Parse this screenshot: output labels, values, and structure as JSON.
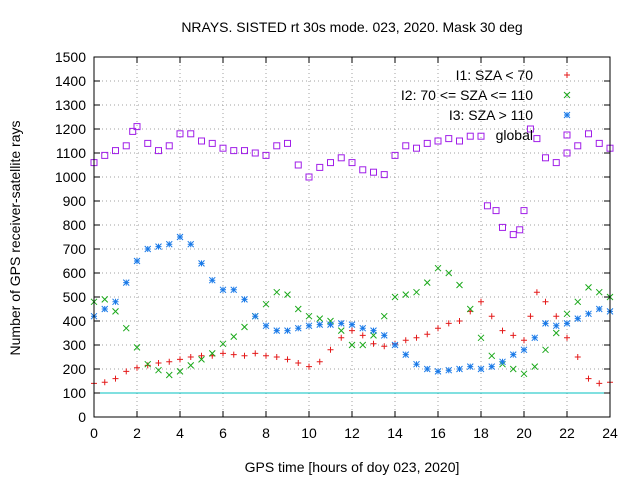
{
  "chart_data": {
    "type": "scatter",
    "title": "NRAYS. SISTED rt 30s mode. 023, 2020. Mask 30 deg",
    "xlabel": "GPS time [hours of doy 023, 2020]",
    "ylabel": "Number of GPS receiver-satellite rays",
    "xlim": [
      0,
      24
    ],
    "ylim": [
      0,
      1500
    ],
    "xticks": [
      0,
      2,
      4,
      6,
      8,
      10,
      12,
      14,
      16,
      18,
      20,
      22,
      24
    ],
    "yticks": [
      0,
      100,
      200,
      300,
      400,
      500,
      600,
      700,
      800,
      900,
      1000,
      1100,
      1200,
      1300,
      1400,
      1500
    ],
    "grid": true,
    "legend_position": "top-right",
    "reference_line": {
      "y": 100,
      "color": "#00c0c0"
    },
    "series": [
      {
        "name": "I1: SZA < 70",
        "marker": "+",
        "color": "#e41a1a",
        "x": [
          0,
          0.5,
          1,
          1.5,
          2,
          2.5,
          3,
          3.5,
          4,
          4.5,
          5,
          5.5,
          6,
          6.5,
          7,
          7.5,
          8,
          8.5,
          9,
          9.5,
          10,
          10.5,
          11,
          11.5,
          12,
          12.5,
          13,
          13.5,
          14,
          14.5,
          15,
          15.5,
          16,
          16.5,
          17,
          17.5,
          18,
          18.5,
          19,
          19.5,
          20,
          20.3,
          20.6,
          21,
          21.5,
          22,
          22.5,
          23,
          23.5,
          24
        ],
        "y": [
          140,
          145,
          160,
          190,
          205,
          215,
          225,
          230,
          240,
          250,
          255,
          255,
          265,
          260,
          255,
          265,
          255,
          250,
          240,
          225,
          210,
          230,
          280,
          330,
          360,
          340,
          305,
          295,
          305,
          320,
          330,
          345,
          370,
          390,
          400,
          440,
          480,
          420,
          360,
          340,
          320,
          420,
          520,
          480,
          420,
          330,
          250,
          160,
          140,
          145
        ]
      },
      {
        "name": "I2: 70 <= SZA <= 110",
        "marker": "x",
        "color": "#1aa81a",
        "x": [
          0,
          0.5,
          1,
          1.5,
          2,
          2.5,
          3,
          3.5,
          4,
          4.5,
          5,
          5.5,
          6,
          6.5,
          7,
          7.5,
          8,
          8.5,
          9,
          9.5,
          10,
          10.5,
          11,
          11.5,
          12,
          12.5,
          13,
          13.5,
          14,
          14.5,
          15,
          15.5,
          16,
          16.5,
          17,
          17.5,
          18,
          18.5,
          19,
          19.5,
          20,
          20.5,
          21,
          21.5,
          22,
          22.5,
          23,
          23.5,
          24
        ],
        "y": [
          480,
          490,
          440,
          370,
          290,
          220,
          195,
          175,
          190,
          215,
          240,
          265,
          305,
          335,
          375,
          420,
          470,
          520,
          510,
          450,
          420,
          410,
          400,
          360,
          300,
          300,
          340,
          420,
          500,
          510,
          520,
          560,
          620,
          600,
          550,
          450,
          330,
          255,
          220,
          200,
          180,
          210,
          280,
          350,
          430,
          480,
          540,
          520,
          500
        ]
      },
      {
        "name": "I3: SZA > 110",
        "marker": "*",
        "color": "#1a7ae8",
        "x": [
          0,
          0.5,
          1,
          1.5,
          2,
          2.5,
          3,
          3.5,
          4,
          4.5,
          5,
          5.5,
          6,
          6.5,
          7,
          7.5,
          8,
          8.5,
          9,
          9.5,
          10,
          10.5,
          11,
          11.5,
          12,
          12.5,
          13,
          13.5,
          14,
          14.5,
          15,
          15.5,
          16,
          16.5,
          17,
          17.5,
          18,
          18.5,
          19,
          19.5,
          20,
          20.5,
          21,
          21.5,
          22,
          22.5,
          23,
          23.5,
          24
        ],
        "y": [
          420,
          450,
          480,
          560,
          650,
          700,
          710,
          720,
          750,
          720,
          640,
          570,
          530,
          530,
          490,
          420,
          380,
          360,
          360,
          370,
          380,
          385,
          385,
          390,
          385,
          370,
          360,
          340,
          300,
          260,
          220,
          200,
          190,
          195,
          200,
          210,
          200,
          210,
          230,
          260,
          280,
          330,
          390,
          380,
          390,
          410,
          430,
          450,
          440
        ]
      },
      {
        "name": "global",
        "marker": "square",
        "color": "#a01ee8",
        "x": [
          0,
          0.5,
          1,
          1.5,
          1.8,
          2,
          2.5,
          3,
          3.5,
          4,
          4.5,
          5,
          5.5,
          6,
          6.5,
          7,
          7.5,
          8,
          8.5,
          9,
          9.5,
          10,
          10.5,
          11,
          11.5,
          12,
          12.5,
          13,
          13.5,
          14,
          14.5,
          15,
          15.5,
          16,
          16.5,
          17,
          17.5,
          18,
          18.3,
          18.7,
          19,
          19.5,
          19.8,
          20,
          20.3,
          20.6,
          21,
          21.5,
          22,
          22.5,
          23,
          23.5,
          24
        ],
        "y": [
          1060,
          1090,
          1110,
          1130,
          1190,
          1210,
          1140,
          1110,
          1130,
          1180,
          1180,
          1150,
          1140,
          1120,
          1110,
          1110,
          1100,
          1090,
          1130,
          1140,
          1050,
          1000,
          1040,
          1060,
          1080,
          1060,
          1030,
          1020,
          1010,
          1090,
          1130,
          1120,
          1140,
          1150,
          1160,
          1150,
          1170,
          1170,
          880,
          860,
          790,
          760,
          780,
          860,
          1200,
          1160,
          1080,
          1060,
          1100,
          1130,
          1180,
          1140,
          1120
        ]
      }
    ]
  }
}
